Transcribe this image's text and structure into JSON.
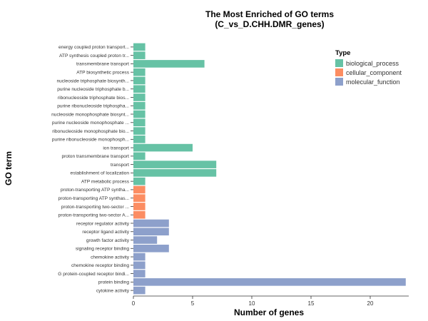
{
  "chart_data": {
    "type": "bar",
    "orientation": "horizontal",
    "title": "The Most Enriched of GO terms",
    "subtitle": "(C_vs_D.CHH.DMR_genes)",
    "xlabel": "Number of genes",
    "ylabel": "GO term",
    "xlim": [
      0,
      24
    ],
    "xticks": [
      "0",
      "5",
      "10",
      "15",
      "20"
    ],
    "grid": false,
    "legend_title": "Type",
    "legend_position": "top-right",
    "types": [
      {
        "name": "biological_process",
        "color": "#66C2A5"
      },
      {
        "name": "cellular_component",
        "color": "#FC8D62"
      },
      {
        "name": "molecular_function",
        "color": "#8DA0CB"
      }
    ],
    "categories": [
      "energy coupled proton transport...",
      "ATP synthesis coupled proton tr...",
      "transmembrane transport",
      "ATP biosynthetic process",
      "nucleoside triphosphate biosynth...",
      "purine nucleoside triphosphate b...",
      "ribonucleoside triphosphate bios...",
      "purine ribonucleoside triphospha...",
      "nucleoside monophosphate biosynt...",
      "purine nucleoside monophosphate ...",
      "ribonucleoside monophosphate bio...",
      "purine ribonucleoside monophosph...",
      "ion transport",
      "proton transmembrane transport",
      "transport",
      "establishment of localization",
      "ATP metabolic process",
      "proton-transporting ATP syntha...",
      "proton-transporting ATP synthas...",
      "proton-transporting two-sector ...",
      "proton-transporting two-sector A...",
      "receptor regulator activity",
      "receptor ligand activity",
      "growth factor activity",
      "signaling receptor binding",
      "chemokine activity",
      "chemokine receptor binding",
      "G protein-coupled receptor bindi...",
      "protein binding",
      "cytokine activity"
    ],
    "values": [
      1,
      1,
      6,
      1,
      1,
      1,
      1,
      1,
      1,
      1,
      1,
      1,
      5,
      1,
      7,
      7,
      1,
      1,
      1,
      1,
      1,
      3,
      3,
      2,
      3,
      1,
      1,
      1,
      23,
      1
    ],
    "category_types": [
      0,
      0,
      0,
      0,
      0,
      0,
      0,
      0,
      0,
      0,
      0,
      0,
      0,
      0,
      0,
      0,
      0,
      1,
      1,
      1,
      1,
      2,
      2,
      2,
      2,
      2,
      2,
      2,
      2,
      2
    ]
  }
}
